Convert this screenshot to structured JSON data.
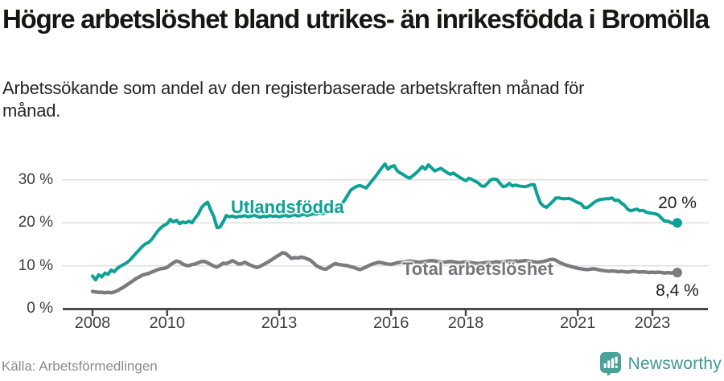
{
  "header": {
    "title": "Högre arbetslöshet bland utrikes- än inrikesfödda i Bromölla",
    "subtitle": "Arbetssökande som andel av den registerbaserade arbetskraften månad för månad."
  },
  "footer": {
    "source": "Källa: Arbetsförmedlingen",
    "brand": "Newsworthy",
    "brand_icon": "newsworthy-speech-bubble-bar-chart-icon"
  },
  "colors": {
    "series1": "#0da195",
    "series2": "#7b7b7f",
    "grid": "#dedede",
    "axis": "#4b4b4b",
    "tick_text": "#3d3d3d",
    "brand_teal": "#3e9a93",
    "brand_icon_bg": "#48a29a"
  },
  "chart_data": {
    "type": "line",
    "title": "Högre arbetslöshet bland utrikes- än inrikesfödda i Bromölla",
    "subtitle": "Arbetssökande som andel av den registerbaserade arbetskraften månad för månad.",
    "xlabel": "",
    "ylabel": "",
    "x_start_year": 2008,
    "x_months_per_point": 1,
    "x_end_month": "2023-09",
    "x_ticks": [
      2008,
      2010,
      2013,
      2016,
      2018,
      2021,
      2023
    ],
    "x_tick_labels": [
      "2008",
      "2010",
      "2013",
      "2016",
      "2018",
      "2021",
      "2023"
    ],
    "y_ticks": [
      0,
      10,
      20,
      30
    ],
    "y_tick_labels": [
      "0 %",
      "10 %",
      "20 %",
      "30 %"
    ],
    "ylim": [
      0,
      35
    ],
    "grid": "horizontal",
    "legend": "inline-labels",
    "series": [
      {
        "name": "Utlandsfödda",
        "color": "#0da195",
        "end_label": "20 %",
        "end_value": 20,
        "values": [
          7.6,
          6.7,
          7.9,
          7.4,
          8.3,
          8.0,
          9.0,
          8.6,
          9.4,
          9.9,
          10.3,
          10.7,
          11.3,
          12.1,
          12.9,
          13.7,
          14.5,
          15.1,
          15.4,
          16.1,
          17.1,
          18.1,
          18.9,
          19.4,
          19.8,
          20.8,
          20.2,
          20.6,
          19.8,
          20.2,
          20.0,
          20.4,
          20.0,
          21.1,
          22.0,
          23.5,
          24.3,
          24.8,
          23.0,
          21.5,
          18.9,
          19.0,
          20.2,
          21.7,
          21.4,
          21.6,
          21.3,
          21.5,
          21.5,
          21.7,
          21.4,
          21.6,
          21.8,
          21.5,
          21.3,
          21.6,
          21.4,
          21.7,
          21.5,
          21.6,
          21.4,
          21.6,
          21.8,
          21.5,
          21.7,
          21.9,
          21.6,
          21.8,
          22.0,
          21.7,
          21.9,
          22.1,
          22.0,
          22.3,
          22.1,
          22.4,
          22.6,
          22.9,
          23.2,
          23.7,
          24.3,
          25.2,
          26.4,
          27.6,
          28.1,
          28.5,
          28.7,
          28.4,
          28.1,
          29.0,
          29.9,
          30.8,
          31.8,
          32.8,
          33.7,
          32.5,
          33.1,
          33.3,
          32.1,
          31.6,
          31.2,
          30.7,
          30.4,
          31.0,
          31.6,
          32.3,
          33.1,
          32.5,
          33.5,
          32.8,
          32.1,
          32.4,
          32.7,
          32.2,
          31.7,
          31.3,
          31.6,
          31.1,
          30.6,
          30.2,
          29.8,
          30.4,
          30.1,
          29.7,
          29.3,
          28.6,
          28.5,
          29.2,
          30.0,
          30.2,
          30.1,
          29.2,
          28.4,
          28.6,
          29.2,
          28.6,
          28.8,
          28.6,
          28.5,
          28.4,
          28.6,
          28.9,
          28.9,
          26.5,
          24.6,
          23.9,
          23.6,
          24.3,
          25.0,
          25.8,
          25.8,
          25.6,
          25.6,
          25.7,
          25.5,
          25.1,
          24.7,
          24.5,
          23.6,
          23.5,
          24.0,
          24.6,
          25.1,
          25.4,
          25.5,
          25.6,
          25.6,
          25.8,
          25.2,
          25.3,
          24.6,
          24.1,
          23.2,
          22.8,
          23.0,
          23.2,
          22.8,
          22.9,
          22.5,
          22.3,
          22.2,
          22.1,
          21.8,
          21.0,
          20.4,
          20.4,
          20.0,
          19.8,
          20.0
        ]
      },
      {
        "name": "Total arbetslöshet",
        "color": "#7b7b7f",
        "end_label": "8,4 %",
        "end_value": 8.4,
        "values": [
          4.0,
          3.9,
          3.8,
          3.8,
          3.7,
          3.8,
          3.7,
          3.9,
          4.2,
          4.6,
          5.0,
          5.5,
          6.0,
          6.5,
          7.0,
          7.4,
          7.8,
          8.0,
          8.2,
          8.5,
          8.8,
          9.1,
          9.3,
          9.4,
          9.6,
          10.2,
          10.7,
          11.1,
          10.9,
          10.4,
          10.1,
          10.0,
          10.3,
          10.4,
          10.7,
          11.0,
          11.0,
          10.7,
          10.3,
          9.9,
          9.7,
          10.1,
          10.6,
          10.5,
          10.8,
          11.2,
          10.8,
          10.4,
          10.5,
          10.8,
          10.4,
          10.1,
          9.8,
          9.6,
          9.9,
          10.3,
          10.7,
          11.1,
          11.6,
          12.1,
          12.5,
          13.0,
          12.9,
          12.3,
          11.7,
          11.9,
          11.8,
          12.0,
          11.9,
          11.6,
          11.3,
          10.7,
          10.0,
          9.6,
          9.3,
          9.2,
          9.6,
          10.1,
          10.5,
          10.3,
          10.2,
          10.1,
          10.0,
          9.8,
          9.6,
          9.3,
          9.1,
          9.4,
          9.7,
          10.1,
          10.4,
          10.6,
          10.8,
          10.7,
          10.5,
          10.4,
          10.3,
          10.5,
          10.7,
          10.8,
          10.9,
          11.0,
          11.1,
          11.0,
          10.9,
          10.8,
          10.9,
          11.0,
          11.1,
          11.2,
          11.1,
          11.0,
          10.9,
          10.8,
          10.9,
          11.0,
          10.9,
          10.8,
          10.7,
          10.8,
          10.9,
          10.8,
          10.7,
          10.6,
          10.5,
          10.6,
          10.7,
          10.8,
          10.7,
          10.8,
          10.9,
          10.8,
          10.9,
          11.0,
          11.1,
          11.0,
          11.1,
          11.0,
          11.1,
          11.2,
          11.1,
          11.0,
          10.9,
          10.8,
          10.9,
          11.0,
          11.2,
          11.4,
          11.5,
          11.3,
          10.8,
          10.5,
          10.2,
          10.0,
          9.8,
          9.6,
          9.4,
          9.3,
          9.2,
          9.1,
          9.2,
          9.3,
          9.2,
          9.0,
          8.9,
          8.8,
          8.7,
          8.8,
          8.7,
          8.6,
          8.7,
          8.6,
          8.5,
          8.6,
          8.7,
          8.6,
          8.5,
          8.6,
          8.5,
          8.4,
          8.5,
          8.4,
          8.5,
          8.4,
          8.3,
          8.4,
          8.3,
          8.4,
          8.4
        ]
      }
    ]
  }
}
